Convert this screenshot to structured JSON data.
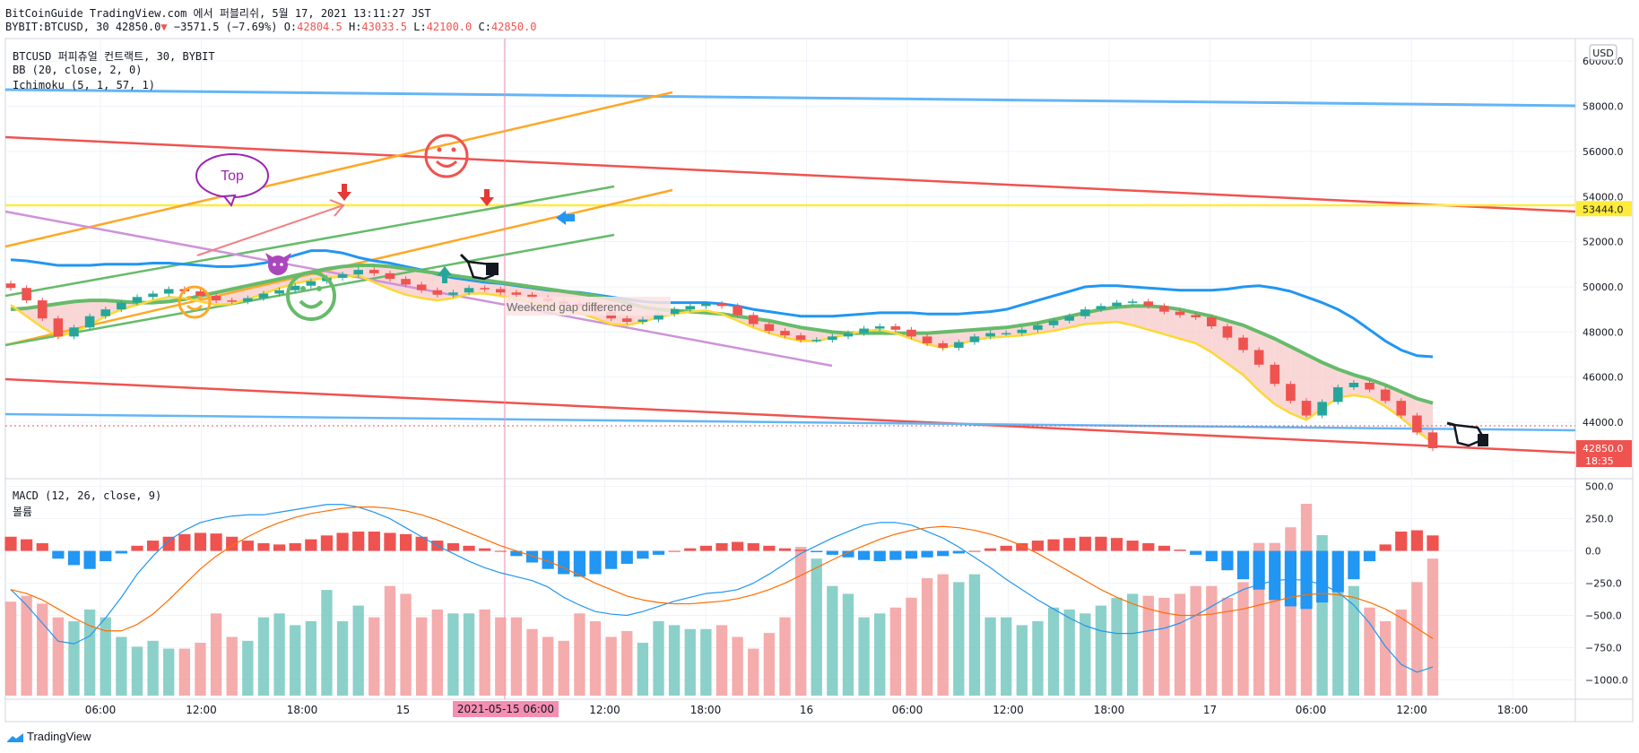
{
  "header": {
    "line1": "BitCoinGuide TradingView.com 에서 퍼블리쉬, 5월 17, 2021 13:11:27 JST",
    "symbol": "BYBIT:BTCUSD, 30",
    "last": "42850.0",
    "change": "−3571.5 (−7.69%)",
    "o_label": "O:",
    "o_value": "42804.5",
    "h_label": "H:",
    "h_value": "43033.5",
    "l_label": "L:",
    "l_value": "42100.0",
    "c_label": "C:",
    "c_value": "42850.0"
  },
  "legend": {
    "title": "BTCUSD 퍼피츄얼 컨트랙트, 30, BYBIT",
    "bb": "BB (20, close, 2, 0)",
    "ichimoku": "Ichimoku (5, 1, 57, 1)",
    "macd": "MACD (12, 26, close, 9)",
    "volume": "볼륨"
  },
  "annotations": {
    "top_label": "Top",
    "gap_label": "Weekend gap difference"
  },
  "footer": {
    "brand": "TradingView"
  },
  "colors": {
    "up": "#26a69a",
    "down": "#ef5350",
    "bb_line": "#2196f3",
    "tenkan": "#fdd835",
    "kijun": "#66bb6a",
    "trend_blue": "#64b5f6",
    "trend_red": "#ef5350",
    "trend_orange": "#ffa726",
    "trend_green": "#66bb6a",
    "trend_pink": "#ce93d8",
    "level_yellow": "#ffeb3b",
    "macd_line": "#2196f3",
    "signal_line": "#ff6d00"
  },
  "chart_data": [
    {
      "type": "candlestick",
      "title": "BTCUSD 퍼피츄얼 컨트랙트, 30, BYBIT",
      "currency": "USD",
      "y_ticks": [
        44000,
        46000,
        48000,
        50000,
        52000,
        54000,
        56000,
        58000,
        60000
      ],
      "y_tick_labels": [
        "44000.0",
        "46000.0",
        "48000.0",
        "50000.0",
        "52000.0",
        "54000.0",
        "56000.0",
        "58000.0",
        "60000.0"
      ],
      "ylim": [
        41500,
        61000
      ],
      "x_ticks": [
        "06:00",
        "12:00",
        "18:00",
        "15",
        "06:00",
        "12:00",
        "18:00",
        "16",
        "06:00",
        "12:00",
        "18:00",
        "17",
        "06:00",
        "12:00",
        "18:00"
      ],
      "x_highlight": "2021-05-15  06:00",
      "price_labels": [
        {
          "value": 53444.0,
          "text": "53444.0",
          "color": "#ffeb3b"
        },
        {
          "value": 42850.0,
          "text": "42850.0",
          "sub": "18:35",
          "color": "#ef5350"
        }
      ],
      "close_series": [
        49950,
        49400,
        48600,
        47800,
        48200,
        48700,
        49000,
        49300,
        49550,
        49700,
        49900,
        49800,
        49600,
        49400,
        49350,
        49500,
        49700,
        49850,
        50050,
        50250,
        50400,
        50550,
        50750,
        50600,
        50350,
        50100,
        49850,
        49650,
        49750,
        49950,
        49900,
        49750,
        49650,
        49500,
        49350,
        49250,
        49150,
        48900,
        48600,
        48450,
        48550,
        48800,
        49000,
        49150,
        49250,
        49150,
        48750,
        48350,
        48050,
        47850,
        47650,
        47650,
        47800,
        47950,
        48150,
        48250,
        48100,
        47800,
        47500,
        47300,
        47550,
        47800,
        47950,
        47950,
        48100,
        48300,
        48500,
        48700,
        49000,
        49150,
        49300,
        49350,
        49150,
        48900,
        48750,
        48650,
        48250,
        47750,
        47200,
        46550,
        45700,
        44950,
        44300,
        44900,
        45550,
        45750,
        45450,
        44950,
        44300,
        43550,
        42850
      ],
      "bb_upper": [
        51200,
        51150,
        51050,
        50950,
        50950,
        50950,
        51000,
        51000,
        51000,
        51050,
        51050,
        51000,
        50950,
        50900,
        50900,
        50950,
        51050,
        51200,
        51400,
        51600,
        51600,
        51500,
        51300,
        51150,
        51050,
        50900,
        50750,
        50550,
        50400,
        50300,
        50200,
        50150,
        50050,
        49950,
        49850,
        49800,
        49750,
        49650,
        49550,
        49450,
        49350,
        49300,
        49300,
        49300,
        49300,
        49250,
        49150,
        49000,
        48900,
        48800,
        48700,
        48700,
        48700,
        48750,
        48800,
        48850,
        48850,
        48850,
        48800,
        48800,
        48800,
        48850,
        48900,
        49000,
        49200,
        49400,
        49600,
        49800,
        50000,
        50050,
        50050,
        50000,
        49950,
        49900,
        49850,
        49850,
        49850,
        49900,
        50000,
        50050,
        49950,
        49800,
        49550,
        49300,
        49000,
        48600,
        48100,
        47600,
        47200,
        46950,
        46900
      ],
      "tenkan": [
        49200,
        48700,
        48200,
        47800,
        48000,
        48300,
        48700,
        49000,
        49200,
        49400,
        49550,
        49500,
        49350,
        49200,
        49250,
        49450,
        49700,
        49950,
        50150,
        50300,
        50400,
        50450,
        50500,
        50200,
        49900,
        49650,
        49500,
        49400,
        49500,
        49700,
        49700,
        49600,
        49450,
        49300,
        49150,
        49000,
        48850,
        48600,
        48350,
        48300,
        48450,
        48650,
        48800,
        48900,
        48950,
        48800,
        48500,
        48200,
        47950,
        47750,
        47600,
        47600,
        47750,
        47900,
        48050,
        48100,
        47950,
        47700,
        47450,
        47300,
        47450,
        47650,
        47750,
        47800,
        47850,
        47950,
        48050,
        48200,
        48350,
        48400,
        48450,
        48300,
        48100,
        47900,
        47700,
        47500,
        47100,
        46600,
        46100,
        45400,
        44800,
        44400,
        44100,
        44600,
        45100,
        45200,
        45100,
        44700,
        44200,
        43600,
        43100
      ],
      "kijun": [
        49000,
        49050,
        49150,
        49250,
        49350,
        49400,
        49400,
        49350,
        49300,
        49300,
        49350,
        49450,
        49600,
        49750,
        49900,
        50050,
        50200,
        50350,
        50500,
        50650,
        50800,
        50900,
        50950,
        50950,
        50900,
        50800,
        50700,
        50600,
        50500,
        50400,
        50300,
        50200,
        50100,
        50000,
        49900,
        49800,
        49700,
        49600,
        49450,
        49300,
        49100,
        49000,
        48950,
        48900,
        48850,
        48800,
        48700,
        48600,
        48500,
        48350,
        48200,
        48100,
        48000,
        47950,
        47950,
        47950,
        47950,
        47950,
        47950,
        48000,
        48050,
        48100,
        48150,
        48200,
        48300,
        48400,
        48550,
        48700,
        48850,
        49000,
        49100,
        49150,
        49150,
        49100,
        49000,
        48850,
        48700,
        48500,
        48300,
        48000,
        47700,
        47350,
        47000,
        46650,
        46350,
        46100,
        45900,
        45650,
        45350,
        45050,
        44850
      ],
      "volume": [
        48,
        51,
        47,
        40,
        38,
        44,
        40,
        30,
        25,
        28,
        24,
        24,
        27,
        42,
        30,
        28,
        40,
        42,
        36,
        38,
        54,
        38,
        46,
        40,
        56,
        52,
        40,
        44,
        42,
        42,
        44,
        40,
        40,
        34,
        30,
        28,
        42,
        38,
        30,
        33,
        27,
        38,
        36,
        34,
        34,
        36,
        30,
        24,
        32,
        40,
        76,
        70,
        56,
        52,
        40,
        42,
        45,
        50,
        60,
        62,
        58,
        62,
        40,
        40,
        36,
        38,
        45,
        44,
        42,
        46,
        50,
        52,
        51,
        50,
        52,
        56,
        56,
        50,
        58,
        78,
        78,
        86,
        98,
        82,
        64,
        56,
        45,
        38,
        44,
        58,
        70
      ]
    },
    {
      "type": "macd",
      "title": "MACD (12, 26, close, 9)",
      "y_ticks": [
        500,
        250,
        0,
        -250,
        -500,
        -750,
        -1000
      ],
      "y_tick_labels": [
        "500.0",
        "250.0",
        "0.0",
        "−250.0",
        "−500.0",
        "−750.0",
        "−1000.0"
      ],
      "ylim": [
        -1150,
        560
      ],
      "histogram": [
        110,
        90,
        60,
        -60,
        -110,
        -140,
        -80,
        -20,
        40,
        80,
        110,
        130,
        140,
        135,
        110,
        80,
        60,
        50,
        60,
        90,
        120,
        140,
        150,
        150,
        140,
        130,
        110,
        80,
        60,
        40,
        20,
        0,
        -40,
        -90,
        -140,
        -180,
        -200,
        -180,
        -140,
        -100,
        -60,
        -30,
        0,
        20,
        40,
        60,
        70,
        60,
        40,
        20,
        10,
        -10,
        -30,
        -50,
        -70,
        -80,
        -70,
        -60,
        -50,
        -40,
        -20,
        0,
        20,
        40,
        60,
        80,
        90,
        100,
        110,
        110,
        100,
        80,
        60,
        40,
        10,
        -30,
        -80,
        -150,
        -220,
        -300,
        -380,
        -430,
        -450,
        -400,
        -320,
        -220,
        -80,
        50,
        150,
        160,
        120
      ],
      "macd_line": [
        -300,
        -420,
        -560,
        -700,
        -720,
        -660,
        -520,
        -360,
        -180,
        -40,
        80,
        160,
        220,
        250,
        270,
        280,
        280,
        300,
        320,
        340,
        360,
        360,
        340,
        300,
        250,
        180,
        110,
        40,
        -20,
        -80,
        -130,
        -170,
        -200,
        -230,
        -280,
        -360,
        -420,
        -470,
        -490,
        -500,
        -470,
        -430,
        -390,
        -360,
        -330,
        -320,
        -300,
        -250,
        -180,
        -100,
        -20,
        40,
        100,
        150,
        200,
        220,
        220,
        200,
        150,
        100,
        30,
        -50,
        -130,
        -220,
        -300,
        -380,
        -450,
        -520,
        -580,
        -620,
        -640,
        -640,
        -620,
        -600,
        -560,
        -500,
        -430,
        -360,
        -300,
        -260,
        -230,
        -220,
        -230,
        -260,
        -320,
        -420,
        -560,
        -740,
        -880,
        -940,
        -900
      ],
      "signal_line": [
        -300,
        -330,
        -380,
        -450,
        -520,
        -580,
        -620,
        -620,
        -570,
        -490,
        -380,
        -260,
        -140,
        -40,
        40,
        110,
        170,
        220,
        260,
        290,
        310,
        330,
        340,
        340,
        330,
        310,
        280,
        240,
        190,
        140,
        90,
        40,
        0,
        -40,
        -80,
        -130,
        -190,
        -250,
        -300,
        -350,
        -380,
        -400,
        -410,
        -410,
        -400,
        -390,
        -370,
        -340,
        -300,
        -250,
        -190,
        -130,
        -70,
        -10,
        40,
        90,
        130,
        160,
        180,
        190,
        180,
        160,
        130,
        90,
        40,
        -20,
        -90,
        -160,
        -230,
        -300,
        -360,
        -410,
        -450,
        -480,
        -500,
        -500,
        -490,
        -470,
        -450,
        -420,
        -390,
        -360,
        -340,
        -330,
        -340,
        -360,
        -400,
        -450,
        -520,
        -600,
        -680
      ]
    }
  ]
}
